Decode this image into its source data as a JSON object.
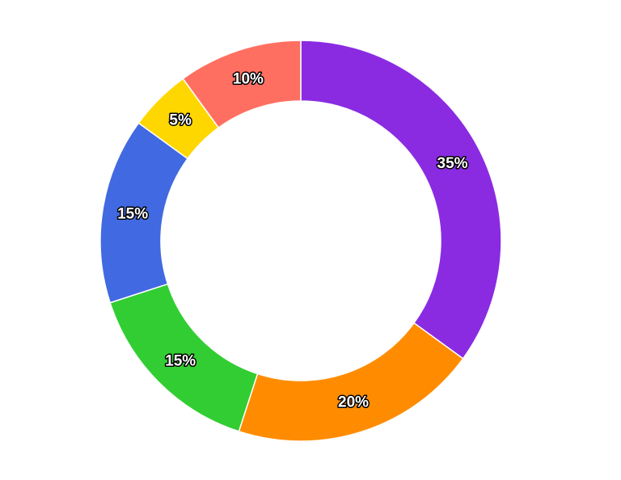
{
  "chart_data": {
    "type": "pie",
    "variant": "donut",
    "start_angle": "12 o'clock",
    "direction": "clockwise",
    "slices": [
      {
        "label": "35%",
        "value": 35,
        "color": "#8A2BE2"
      },
      {
        "label": "20%",
        "value": 20,
        "color": "#FF8C00"
      },
      {
        "label": "15%",
        "value": 15,
        "color": "#32CD32"
      },
      {
        "label": "15%",
        "value": 15,
        "color": "#4169E1"
      },
      {
        "label": "5%",
        "value": 5,
        "color": "#FFD700"
      },
      {
        "label": "10%",
        "value": 10,
        "color": "#FF6F61"
      }
    ],
    "legend": "none",
    "title": ""
  }
}
